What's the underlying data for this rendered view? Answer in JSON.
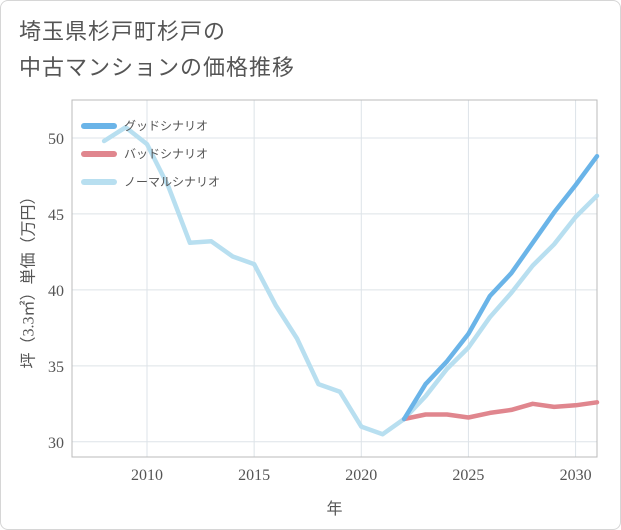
{
  "title_line1": "埼玉県杉戸町杉戸の",
  "title_line2": "中古マンションの価格推移",
  "chart_data": {
    "type": "line",
    "xlabel": "年",
    "ylabel": "坪（3.3㎡）単価（万円）",
    "xlim": [
      2006.5,
      2031
    ],
    "ylim": [
      29,
      52.5
    ],
    "xticks": [
      2010,
      2015,
      2020,
      2025,
      2030
    ],
    "yticks": [
      30,
      35,
      40,
      45,
      50
    ],
    "grid": true,
    "legend_position": "top-left",
    "series": [
      {
        "name": "グッドシナリオ",
        "color": "#6ab4e8",
        "x": [
          2022,
          2023,
          2024,
          2025,
          2026,
          2027,
          2028,
          2029,
          2030,
          2031
        ],
        "y": [
          31.5,
          33.8,
          35.3,
          37.1,
          39.6,
          41.1,
          43.1,
          45.1,
          46.9,
          48.8
        ]
      },
      {
        "name": "バッドシナリオ",
        "color": "#e0868e",
        "x": [
          2022,
          2023,
          2024,
          2025,
          2026,
          2027,
          2028,
          2029,
          2030,
          2031
        ],
        "y": [
          31.5,
          31.8,
          31.8,
          31.6,
          31.9,
          32.1,
          32.5,
          32.3,
          32.4,
          32.6
        ]
      },
      {
        "name": "ノーマルシナリオ",
        "color": "#b8dff0",
        "x": [
          2008,
          2009,
          2010,
          2011,
          2012,
          2013,
          2014,
          2015,
          2016,
          2017,
          2018,
          2019,
          2020,
          2021,
          2022,
          2023,
          2024,
          2025,
          2026,
          2027,
          2028,
          2029,
          2030,
          2031
        ],
        "y": [
          49.8,
          50.7,
          49.6,
          46.8,
          43.1,
          43.2,
          42.2,
          41.7,
          39.0,
          36.8,
          33.8,
          33.3,
          31.0,
          30.5,
          31.5,
          33.0,
          34.8,
          36.2,
          38.2,
          39.8,
          41.6,
          43.0,
          44.8,
          46.2
        ]
      }
    ]
  }
}
